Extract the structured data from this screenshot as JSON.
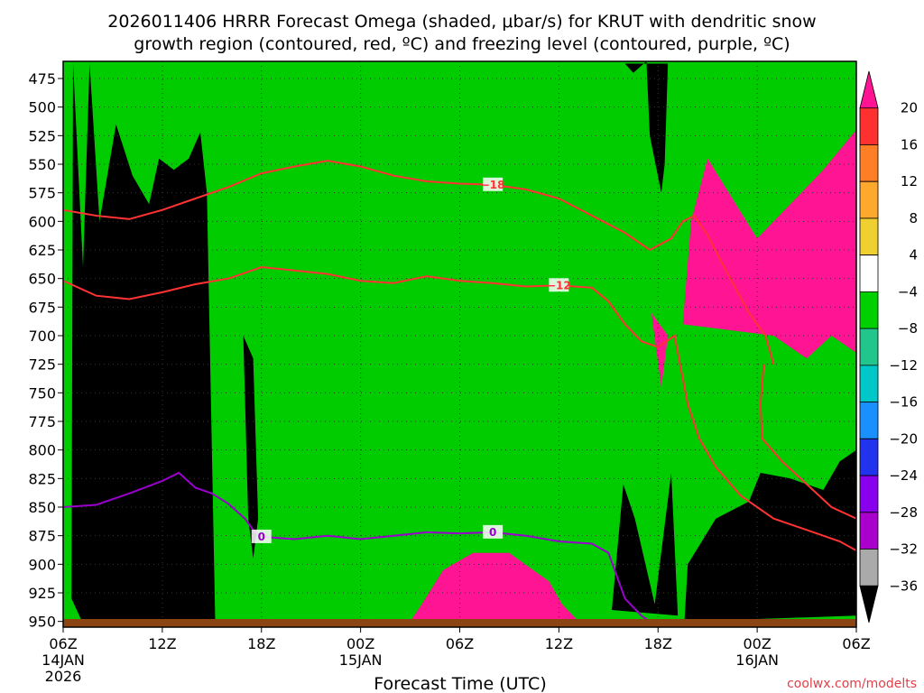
{
  "chart_data": {
    "type": "heatmap",
    "title_line1": "2026011406 HRRR Forecast Omega (shaded, μbar/s) for KRUT with dendritic snow",
    "title_line2": "growth region (contoured, red, ºC) and freezing level (contoured, purple, ºC)",
    "xlabel": "Forecast Time (UTC)",
    "ylabel": "",
    "credit": "coolwx.com/modelts",
    "x_range_hours": [
      0,
      48
    ],
    "y_range_hpa": [
      460,
      955
    ],
    "x_ticks": [
      {
        "h": 0,
        "l1": "06Z",
        "l2": "14JAN",
        "l3": "2026"
      },
      {
        "h": 6,
        "l1": "12Z",
        "l2": "",
        "l3": ""
      },
      {
        "h": 12,
        "l1": "18Z",
        "l2": "",
        "l3": ""
      },
      {
        "h": 18,
        "l1": "00Z",
        "l2": "15JAN",
        "l3": ""
      },
      {
        "h": 24,
        "l1": "06Z",
        "l2": "",
        "l3": ""
      },
      {
        "h": 30,
        "l1": "12Z",
        "l2": "",
        "l3": ""
      },
      {
        "h": 36,
        "l1": "18Z",
        "l2": "",
        "l3": ""
      },
      {
        "h": 42,
        "l1": "00Z",
        "l2": "16JAN",
        "l3": ""
      },
      {
        "h": 48,
        "l1": "06Z",
        "l2": "",
        "l3": ""
      }
    ],
    "y_ticks": [
      475,
      500,
      525,
      550,
      575,
      600,
      625,
      650,
      675,
      700,
      725,
      750,
      775,
      800,
      825,
      850,
      875,
      900,
      925,
      950
    ],
    "colorbar": {
      "labels": [
        "20",
        "16",
        "12",
        "8",
        "4",
        "−4",
        "−8",
        "−12",
        "−16",
        "−20",
        "−24",
        "−28",
        "−32",
        "−36"
      ],
      "colors": [
        "#ff1493",
        "#ff3030",
        "#ff7f27",
        "#ffa82e",
        "#f0d030",
        "#ffffff",
        "#00d000",
        "#22c68c",
        "#00c8c8",
        "#1a90ff",
        "#2233ee",
        "#8800ee",
        "#aa00cc",
        "#aaaaaa",
        "#000000"
      ]
    },
    "omega_regions": [
      {
        "level": -36,
        "color": "#000000",
        "points": [
          [
            0.6,
            462
          ],
          [
            1.2,
            640
          ],
          [
            1.6,
            462
          ],
          [
            2.2,
            600
          ],
          [
            3.2,
            515
          ],
          [
            4.2,
            560
          ],
          [
            5.2,
            585
          ],
          [
            5.8,
            545
          ],
          [
            6.7,
            555
          ],
          [
            7.6,
            545
          ],
          [
            8.3,
            522
          ],
          [
            8.7,
            575
          ],
          [
            9.2,
            950
          ],
          [
            5.5,
            952
          ],
          [
            1.2,
            952
          ],
          [
            0.5,
            930
          ]
        ]
      },
      {
        "level": -36,
        "color": "#000000",
        "points": [
          [
            10.9,
            700
          ],
          [
            11.2,
            860
          ],
          [
            11.5,
            895
          ],
          [
            11.8,
            860
          ],
          [
            11.5,
            720
          ]
        ]
      },
      {
        "level": -36,
        "color": "#000000",
        "points": [
          [
            33.2,
            940
          ],
          [
            33.9,
            830
          ],
          [
            34.6,
            860
          ],
          [
            35.8,
            935
          ],
          [
            36.8,
            820
          ],
          [
            37.2,
            945
          ]
        ]
      },
      {
        "level": -36,
        "color": "#000000",
        "points": [
          [
            37.6,
            950
          ],
          [
            37.8,
            900
          ],
          [
            39.5,
            860
          ],
          [
            41.5,
            845
          ],
          [
            42.2,
            820
          ],
          [
            44,
            825
          ],
          [
            46,
            835
          ],
          [
            47,
            810
          ],
          [
            48,
            800
          ],
          [
            48,
            945
          ]
        ]
      },
      {
        "level": -36,
        "color": "#000000",
        "points": [
          [
            34.0,
            462
          ],
          [
            34.5,
            470
          ],
          [
            35.3,
            460
          ],
          [
            35.5,
            525
          ],
          [
            36.2,
            575
          ],
          [
            36.4,
            550
          ],
          [
            36.6,
            462
          ]
        ]
      },
      {
        "level": 20,
        "color": "#ff1493",
        "points": [
          [
            21,
            950
          ],
          [
            21.7,
            935
          ],
          [
            23,
            905
          ],
          [
            24.8,
            890
          ],
          [
            27,
            890
          ],
          [
            29.4,
            915
          ],
          [
            30.2,
            935
          ],
          [
            31.2,
            950
          ]
        ]
      },
      {
        "level": 20,
        "color": "#ff1493",
        "points": [
          [
            37.5,
            690
          ],
          [
            38,
            600
          ],
          [
            39,
            545
          ],
          [
            42,
            615
          ],
          [
            44,
            585
          ],
          [
            46,
            555
          ],
          [
            48,
            520
          ],
          [
            48,
            715
          ],
          [
            46.5,
            700
          ],
          [
            45,
            720
          ],
          [
            43,
            700
          ]
        ]
      },
      {
        "level": 20,
        "color": "#ff1493",
        "points": [
          [
            35.6,
            680
          ],
          [
            36.2,
            745
          ],
          [
            36.6,
            700
          ]
        ]
      }
    ],
    "dgz_contour_minus18": {
      "label": "−18",
      "points": [
        [
          0,
          590
        ],
        [
          2,
          595
        ],
        [
          4,
          598
        ],
        [
          6,
          590
        ],
        [
          8,
          580
        ],
        [
          10,
          570
        ],
        [
          12,
          558
        ],
        [
          14,
          552
        ],
        [
          16,
          547
        ],
        [
          18,
          552
        ],
        [
          20,
          560
        ],
        [
          22,
          565
        ],
        [
          24,
          567
        ],
        [
          26,
          568
        ],
        [
          28,
          572
        ],
        [
          30,
          580
        ],
        [
          32,
          595
        ],
        [
          34,
          610
        ],
        [
          35.5,
          625
        ],
        [
          36.8,
          615
        ],
        [
          37.5,
          600
        ],
        [
          38.2,
          595
        ],
        [
          39,
          612
        ],
        [
          40,
          640
        ],
        [
          41.5,
          680
        ],
        [
          42.5,
          700
        ],
        [
          43,
          725
        ]
      ]
    },
    "dgz_contour_minus12": {
      "label": "−12",
      "points": [
        [
          0,
          652
        ],
        [
          2,
          665
        ],
        [
          4,
          668
        ],
        [
          6,
          662
        ],
        [
          8,
          655
        ],
        [
          10,
          650
        ],
        [
          12,
          640
        ],
        [
          14,
          643
        ],
        [
          16,
          646
        ],
        [
          18,
          652
        ],
        [
          20,
          654
        ],
        [
          22,
          648
        ],
        [
          24,
          652
        ],
        [
          26,
          654
        ],
        [
          28,
          657
        ],
        [
          30,
          656
        ],
        [
          32,
          658
        ],
        [
          33,
          670
        ],
        [
          34,
          690
        ],
        [
          35,
          705
        ],
        [
          36,
          710
        ],
        [
          37,
          700
        ],
        [
          37.8,
          760
        ],
        [
          38.5,
          790
        ],
        [
          39.5,
          815
        ],
        [
          41,
          840
        ],
        [
          43,
          860
        ],
        [
          45,
          870
        ],
        [
          47,
          880
        ],
        [
          48,
          888
        ]
      ]
    },
    "dgz_contour_lower": {
      "label": "",
      "points": [
        [
          42.4,
          725
        ],
        [
          42.2,
          760
        ],
        [
          42.3,
          790
        ],
        [
          43.5,
          810
        ],
        [
          45,
          830
        ],
        [
          46.5,
          850
        ],
        [
          48,
          860
        ]
      ]
    },
    "freezing_level": {
      "label": "0",
      "points": [
        [
          0,
          850
        ],
        [
          2,
          848
        ],
        [
          4,
          838
        ],
        [
          6,
          827
        ],
        [
          7,
          820
        ],
        [
          8,
          833
        ],
        [
          9,
          838
        ],
        [
          10,
          847
        ],
        [
          11,
          860
        ],
        [
          11.5,
          870
        ],
        [
          12,
          876
        ],
        [
          14,
          878
        ],
        [
          16,
          875
        ],
        [
          18,
          878
        ],
        [
          20,
          875
        ],
        [
          22,
          872
        ],
        [
          24,
          873
        ],
        [
          26,
          872
        ],
        [
          28,
          875
        ],
        [
          30,
          880
        ],
        [
          32,
          882
        ],
        [
          33,
          890
        ],
        [
          34,
          930
        ],
        [
          35,
          945
        ],
        [
          36,
          955
        ]
      ]
    }
  }
}
